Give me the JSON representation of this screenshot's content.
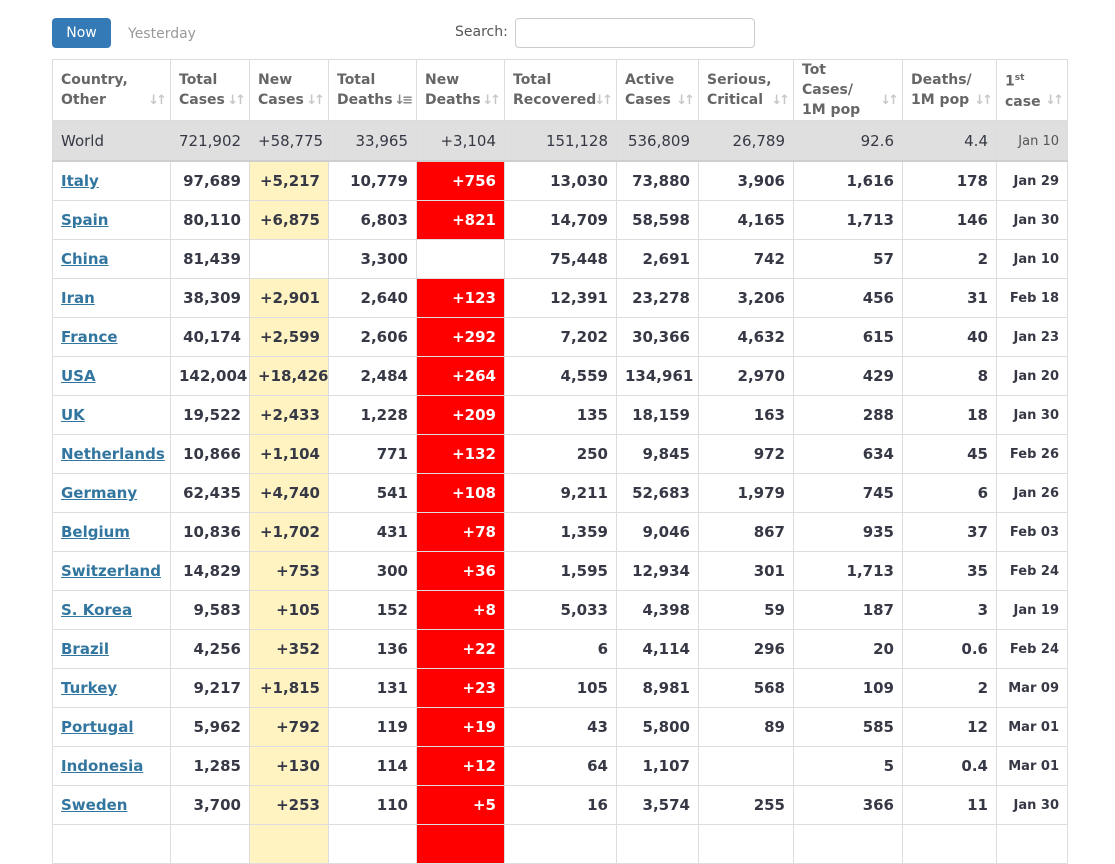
{
  "tabs": {
    "now": "Now",
    "yesterday": "Yesterday"
  },
  "search": {
    "label": "Search:",
    "value": "",
    "placeholder": ""
  },
  "colors": {
    "accent": "#337ab7",
    "link": "#32769f",
    "new_cases_bg": "#fff3c2",
    "new_deaths_bg": "#ff0000"
  },
  "columns": [
    {
      "l1": "Country,",
      "l2": "Other",
      "icon": "sort-icon"
    },
    {
      "l1": "Total",
      "l2": "Cases",
      "icon": "sort-icon"
    },
    {
      "l1": "New",
      "l2": "Cases",
      "icon": "sort-icon"
    },
    {
      "l1": "Total",
      "l2": "Deaths",
      "icon": "sort-desc-icon"
    },
    {
      "l1": "New",
      "l2": "Deaths",
      "icon": "sort-icon"
    },
    {
      "l1": "Total",
      "l2": "Recovered",
      "icon": "sort-icon"
    },
    {
      "l1": "Active",
      "l2": "Cases",
      "icon": "sort-icon"
    },
    {
      "l1": "Serious,",
      "l2": "Critical",
      "icon": "sort-icon"
    },
    {
      "l1": "Tot Cases/",
      "l2": "1M pop",
      "icon": "sort-icon"
    },
    {
      "l1": "Deaths/",
      "l2": "1M pop",
      "icon": "sort-icon"
    },
    {
      "l1": "1",
      "l1_sup": "st",
      "l2": "case",
      "icon": "sort-icon"
    }
  ],
  "world": {
    "country": "World",
    "total_cases": "721,902",
    "new_cases": "+58,775",
    "total_deaths": "33,965",
    "new_deaths": "+3,104",
    "recovered": "151,128",
    "active": "536,809",
    "critical": "26,789",
    "cases_per_m": "92.6",
    "deaths_per_m": "4.4",
    "first_case": "Jan 10"
  },
  "rows": [
    {
      "country": "Italy",
      "total_cases": "97,689",
      "new_cases": "+5,217",
      "total_deaths": "10,779",
      "new_deaths": "+756",
      "recovered": "13,030",
      "active": "73,880",
      "critical": "3,906",
      "cases_per_m": "1,616",
      "deaths_per_m": "178",
      "first_case": "Jan 29"
    },
    {
      "country": "Spain",
      "total_cases": "80,110",
      "new_cases": "+6,875",
      "total_deaths": "6,803",
      "new_deaths": "+821",
      "recovered": "14,709",
      "active": "58,598",
      "critical": "4,165",
      "cases_per_m": "1,713",
      "deaths_per_m": "146",
      "first_case": "Jan 30"
    },
    {
      "country": "China",
      "total_cases": "81,439",
      "new_cases": "",
      "total_deaths": "3,300",
      "new_deaths": "",
      "recovered": "75,448",
      "active": "2,691",
      "critical": "742",
      "cases_per_m": "57",
      "deaths_per_m": "2",
      "first_case": "Jan 10"
    },
    {
      "country": "Iran",
      "total_cases": "38,309",
      "new_cases": "+2,901",
      "total_deaths": "2,640",
      "new_deaths": "+123",
      "recovered": "12,391",
      "active": "23,278",
      "critical": "3,206",
      "cases_per_m": "456",
      "deaths_per_m": "31",
      "first_case": "Feb 18"
    },
    {
      "country": "France",
      "total_cases": "40,174",
      "new_cases": "+2,599",
      "total_deaths": "2,606",
      "new_deaths": "+292",
      "recovered": "7,202",
      "active": "30,366",
      "critical": "4,632",
      "cases_per_m": "615",
      "deaths_per_m": "40",
      "first_case": "Jan 23"
    },
    {
      "country": "USA",
      "total_cases": "142,004",
      "new_cases": "+18,426",
      "total_deaths": "2,484",
      "new_deaths": "+264",
      "recovered": "4,559",
      "active": "134,961",
      "critical": "2,970",
      "cases_per_m": "429",
      "deaths_per_m": "8",
      "first_case": "Jan 20"
    },
    {
      "country": "UK",
      "total_cases": "19,522",
      "new_cases": "+2,433",
      "total_deaths": "1,228",
      "new_deaths": "+209",
      "recovered": "135",
      "active": "18,159",
      "critical": "163",
      "cases_per_m": "288",
      "deaths_per_m": "18",
      "first_case": "Jan 30"
    },
    {
      "country": "Netherlands",
      "total_cases": "10,866",
      "new_cases": "+1,104",
      "total_deaths": "771",
      "new_deaths": "+132",
      "recovered": "250",
      "active": "9,845",
      "critical": "972",
      "cases_per_m": "634",
      "deaths_per_m": "45",
      "first_case": "Feb 26"
    },
    {
      "country": "Germany",
      "total_cases": "62,435",
      "new_cases": "+4,740",
      "total_deaths": "541",
      "new_deaths": "+108",
      "recovered": "9,211",
      "active": "52,683",
      "critical": "1,979",
      "cases_per_m": "745",
      "deaths_per_m": "6",
      "first_case": "Jan 26"
    },
    {
      "country": "Belgium",
      "total_cases": "10,836",
      "new_cases": "+1,702",
      "total_deaths": "431",
      "new_deaths": "+78",
      "recovered": "1,359",
      "active": "9,046",
      "critical": "867",
      "cases_per_m": "935",
      "deaths_per_m": "37",
      "first_case": "Feb 03"
    },
    {
      "country": "Switzerland",
      "total_cases": "14,829",
      "new_cases": "+753",
      "total_deaths": "300",
      "new_deaths": "+36",
      "recovered": "1,595",
      "active": "12,934",
      "critical": "301",
      "cases_per_m": "1,713",
      "deaths_per_m": "35",
      "first_case": "Feb 24"
    },
    {
      "country": "S. Korea",
      "total_cases": "9,583",
      "new_cases": "+105",
      "total_deaths": "152",
      "new_deaths": "+8",
      "recovered": "5,033",
      "active": "4,398",
      "critical": "59",
      "cases_per_m": "187",
      "deaths_per_m": "3",
      "first_case": "Jan 19"
    },
    {
      "country": "Brazil",
      "total_cases": "4,256",
      "new_cases": "+352",
      "total_deaths": "136",
      "new_deaths": "+22",
      "recovered": "6",
      "active": "4,114",
      "critical": "296",
      "cases_per_m": "20",
      "deaths_per_m": "0.6",
      "first_case": "Feb 24"
    },
    {
      "country": "Turkey",
      "total_cases": "9,217",
      "new_cases": "+1,815",
      "total_deaths": "131",
      "new_deaths": "+23",
      "recovered": "105",
      "active": "8,981",
      "critical": "568",
      "cases_per_m": "109",
      "deaths_per_m": "2",
      "first_case": "Mar 09"
    },
    {
      "country": "Portugal",
      "total_cases": "5,962",
      "new_cases": "+792",
      "total_deaths": "119",
      "new_deaths": "+19",
      "recovered": "43",
      "active": "5,800",
      "critical": "89",
      "cases_per_m": "585",
      "deaths_per_m": "12",
      "first_case": "Mar 01"
    },
    {
      "country": "Indonesia",
      "total_cases": "1,285",
      "new_cases": "+130",
      "total_deaths": "114",
      "new_deaths": "+12",
      "recovered": "64",
      "active": "1,107",
      "critical": "",
      "cases_per_m": "5",
      "deaths_per_m": "0.4",
      "first_case": "Mar 01"
    },
    {
      "country": "Sweden",
      "total_cases": "3,700",
      "new_cases": "+253",
      "total_deaths": "110",
      "new_deaths": "+5",
      "recovered": "16",
      "active": "3,574",
      "critical": "255",
      "cases_per_m": "366",
      "deaths_per_m": "11",
      "first_case": "Jan 30"
    },
    {
      "country": "",
      "total_cases": "",
      "new_cases": "",
      "total_deaths": "",
      "new_deaths": "",
      "recovered": "",
      "active": "",
      "critical": "",
      "cases_per_m": "",
      "deaths_per_m": "",
      "first_case": ""
    }
  ]
}
